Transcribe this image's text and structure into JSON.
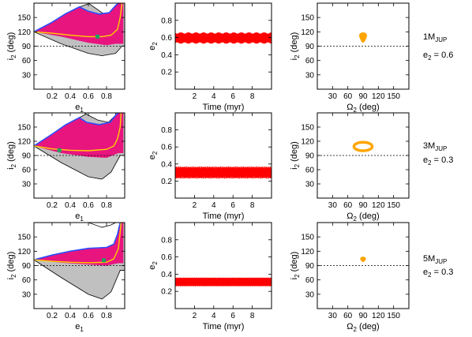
{
  "rows": [
    {
      "planet_mass": "1M",
      "planet_mass_sub": "JUP",
      "e2_label": "e",
      "e2_label_sub": "2",
      "e2_value": " = 0.6"
    },
    {
      "planet_mass": "3M",
      "planet_mass_sub": "JUP",
      "e2_label": "e",
      "e2_label_sub": "2",
      "e2_value": " = 0.3"
    },
    {
      "planet_mass": "5M",
      "planet_mass_sub": "JUP",
      "e2_label": "e",
      "e2_label_sub": "2",
      "e2_value": " = 0.3"
    }
  ],
  "chart_data": [
    {
      "panel": "row1-col1",
      "type": "area",
      "xlabel": "e",
      "xlabel_sub": "1",
      "ylabel": "i",
      "ylabel_sub": "2",
      "ylabel_suffix": " (deg)",
      "xlim": [
        0,
        1
      ],
      "ylim": [
        0,
        180
      ],
      "xticks": [
        0.2,
        0.4,
        0.6,
        0.8
      ],
      "yticks": [
        30,
        60,
        90,
        120,
        150
      ],
      "dashed_line": 90,
      "apex": 120,
      "outer_region": {
        "color": "#c0c0c0",
        "top": [
          [
            0.6,
            180
          ],
          [
            0.75,
            160
          ],
          [
            0.85,
            150
          ],
          [
            0.92,
            180
          ]
        ],
        "bottom": [
          [
            0.0,
            120
          ],
          [
            0.3,
            95
          ],
          [
            0.6,
            75
          ],
          [
            0.75,
            70
          ],
          [
            0.9,
            75
          ],
          [
            0.97,
            90
          ]
        ]
      },
      "libration_region": {
        "color": "#e8157f",
        "top": [
          [
            0.0,
            120
          ],
          [
            0.2,
            140
          ],
          [
            0.35,
            158
          ],
          [
            0.5,
            172
          ],
          [
            0.62,
            180
          ]
        ],
        "bottom": [
          [
            0.0,
            120
          ],
          [
            0.3,
            110
          ],
          [
            0.6,
            97
          ],
          [
            0.8,
            92
          ],
          [
            0.9,
            95
          ]
        ]
      },
      "blue_curve": [
        [
          0.0,
          120
        ],
        [
          0.2,
          140
        ],
        [
          0.35,
          158
        ],
        [
          0.5,
          172
        ],
        [
          0.6,
          163
        ],
        [
          0.72,
          157
        ],
        [
          0.83,
          160
        ],
        [
          0.9,
          175
        ],
        [
          0.93,
          180
        ]
      ],
      "yellow_curve": [
        [
          0.0,
          120
        ],
        [
          0.2,
          117
        ],
        [
          0.4,
          113
        ],
        [
          0.6,
          110
        ],
        [
          0.75,
          110
        ],
        [
          0.85,
          113
        ],
        [
          0.92,
          125
        ],
        [
          0.95,
          150
        ],
        [
          0.97,
          180
        ]
      ],
      "green_point": [
        0.7,
        110
      ]
    },
    {
      "panel": "row1-col2",
      "type": "line",
      "xlabel": "Time (myr)",
      "ylabel": "e",
      "ylabel_sub": "2",
      "xlim": [
        0,
        10
      ],
      "ylim": [
        0,
        1
      ],
      "xticks": [
        2,
        4,
        6,
        8
      ],
      "yticks": [
        0.2,
        0.4,
        0.6,
        0.8
      ],
      "band_min": 0.53,
      "band_max": 0.66,
      "wiggle": 0.015,
      "wiggle_freq": 8,
      "color": "#ff0000"
    },
    {
      "panel": "row1-col3",
      "type": "scatter",
      "xlabel": "Ω",
      "xlabel_sub": "2",
      "xlabel_suffix": " (deg)",
      "ylabel": "i",
      "ylabel_sub": "2",
      "ylabel_suffix": " (deg)",
      "xlim": [
        0,
        180
      ],
      "ylim": [
        0,
        180
      ],
      "xticks": [
        30,
        60,
        90,
        120,
        150
      ],
      "yticks": [
        30,
        60,
        90,
        120,
        150
      ],
      "dashed_line": 90,
      "blob": {
        "shape": "drop",
        "center": [
          90,
          112
        ],
        "rx": 7,
        "ry_top": 8,
        "ry_bottom": 14
      },
      "color": "#ffa500"
    },
    {
      "panel": "row2-col1",
      "type": "area",
      "xlabel": "e",
      "xlabel_sub": "1",
      "ylabel": "i",
      "ylabel_sub": "2",
      "ylabel_suffix": " (deg)",
      "xlim": [
        0,
        1
      ],
      "ylim": [
        0,
        180
      ],
      "xticks": [
        0.2,
        0.4,
        0.6,
        0.8
      ],
      "yticks": [
        30,
        60,
        90,
        120,
        150
      ],
      "dashed_line": 90,
      "apex": 110,
      "outer_region": {
        "color": "#c0c0c0",
        "top": [
          [
            0.55,
            180
          ],
          [
            0.7,
            165
          ],
          [
            0.82,
            160
          ],
          [
            0.9,
            175
          ]
        ],
        "bottom": [
          [
            0.0,
            110
          ],
          [
            0.3,
            75
          ],
          [
            0.6,
            45
          ],
          [
            0.75,
            40
          ],
          [
            0.85,
            55
          ],
          [
            0.95,
            90
          ]
        ]
      },
      "libration_region": {
        "color": "#e8157f",
        "top": [
          [
            0.0,
            110
          ],
          [
            0.2,
            135
          ],
          [
            0.35,
            155
          ],
          [
            0.5,
            170
          ],
          [
            0.6,
            180
          ]
        ],
        "bottom": [
          [
            0.0,
            110
          ],
          [
            0.3,
            95
          ],
          [
            0.6,
            87
          ],
          [
            0.8,
            85
          ],
          [
            0.93,
            95
          ]
        ]
      },
      "blue_curve": [
        [
          0.0,
          110
        ],
        [
          0.2,
          135
        ],
        [
          0.35,
          155
        ],
        [
          0.5,
          170
        ],
        [
          0.58,
          160
        ],
        [
          0.72,
          155
        ],
        [
          0.84,
          160
        ],
        [
          0.9,
          175
        ],
        [
          0.93,
          180
        ]
      ],
      "yellow_curve": [
        [
          0.0,
          110
        ],
        [
          0.2,
          104
        ],
        [
          0.4,
          101
        ],
        [
          0.6,
          100
        ],
        [
          0.8,
          103
        ],
        [
          0.88,
          110
        ],
        [
          0.92,
          125
        ],
        [
          0.95,
          150
        ],
        [
          0.96,
          180
        ]
      ],
      "green_point": [
        0.28,
        101
      ]
    },
    {
      "panel": "row2-col2",
      "type": "line",
      "xlabel": "Time (myr)",
      "ylabel": "e",
      "ylabel_sub": "2",
      "xlim": [
        0,
        10
      ],
      "ylim": [
        0,
        1
      ],
      "xticks": [
        2,
        4,
        6,
        8
      ],
      "yticks": [
        0.2,
        0.4,
        0.6,
        0.8
      ],
      "band_min": 0.23,
      "band_max": 0.37,
      "wiggle": 0.04,
      "wiggle_freq": 45,
      "color": "#ff0000"
    },
    {
      "panel": "row2-col3",
      "type": "scatter",
      "xlabel": "Ω",
      "xlabel_sub": "2",
      "xlabel_suffix": " (deg)",
      "ylabel": "i",
      "ylabel_sub": "2",
      "ylabel_suffix": " (deg)",
      "xlim": [
        0,
        180
      ],
      "ylim": [
        0,
        180
      ],
      "xticks": [
        30,
        60,
        90,
        120,
        150
      ],
      "yticks": [
        30,
        60,
        90,
        120,
        150
      ],
      "dashed_line": 90,
      "blob": {
        "shape": "ring",
        "center": [
          90,
          109
        ],
        "rx": 18,
        "ry": 9,
        "thickness": 3.5
      },
      "color": "#ffa500"
    },
    {
      "panel": "row3-col1",
      "type": "area",
      "xlabel": "e",
      "xlabel_sub": "1",
      "ylabel": "i",
      "ylabel_sub": "2",
      "ylabel_suffix": " (deg)",
      "xlim": [
        0,
        1
      ],
      "ylim": [
        0,
        180
      ],
      "xticks": [
        0.2,
        0.4,
        0.6,
        0.8
      ],
      "yticks": [
        30,
        60,
        90,
        120,
        150
      ],
      "dashed_line": 90,
      "apex": 102,
      "outer_region": {
        "color": "#c0c0c0",
        "top": [
          [
            0.6,
            180
          ],
          [
            0.75,
            170
          ],
          [
            0.85,
            175
          ],
          [
            0.9,
            180
          ]
        ],
        "bottom": [
          [
            0.0,
            102
          ],
          [
            0.3,
            65
          ],
          [
            0.6,
            30
          ],
          [
            0.75,
            20
          ],
          [
            0.85,
            35
          ],
          [
            0.95,
            80
          ]
        ]
      },
      "libration_region": {
        "color": "#e8157f",
        "top": [
          [
            0.0,
            102
          ],
          [
            0.2,
            112
          ],
          [
            0.4,
            120
          ],
          [
            0.6,
            126
          ],
          [
            0.8,
            128
          ],
          [
            0.88,
            135
          ],
          [
            0.92,
            155
          ],
          [
            0.95,
            180
          ]
        ],
        "bottom": [
          [
            0.0,
            102
          ],
          [
            0.3,
            96
          ],
          [
            0.6,
            92
          ],
          [
            0.8,
            90
          ],
          [
            0.93,
            95
          ]
        ]
      },
      "blue_curve": [
        [
          0.0,
          102
        ],
        [
          0.2,
          112
        ],
        [
          0.4,
          120
        ],
        [
          0.6,
          126
        ],
        [
          0.8,
          128
        ],
        [
          0.88,
          135
        ],
        [
          0.92,
          155
        ],
        [
          0.95,
          180
        ]
      ],
      "yellow_curve": [
        [
          0.0,
          102
        ],
        [
          0.2,
          99
        ],
        [
          0.4,
          97
        ],
        [
          0.6,
          96
        ],
        [
          0.8,
          97
        ],
        [
          0.88,
          104
        ],
        [
          0.93,
          125
        ],
        [
          0.95,
          160
        ],
        [
          0.96,
          180
        ]
      ],
      "green_point": [
        0.77,
        101
      ]
    },
    {
      "panel": "row3-col2",
      "type": "line",
      "xlabel": "Time (myr)",
      "ylabel": "e",
      "ylabel_sub": "2",
      "xlim": [
        0,
        10
      ],
      "ylim": [
        0,
        1
      ],
      "xticks": [
        2,
        4,
        6,
        8
      ],
      "yticks": [
        0.2,
        0.4,
        0.6,
        0.8
      ],
      "band_min": 0.26,
      "band_max": 0.36,
      "wiggle": 0.012,
      "wiggle_freq": 80,
      "color": "#ff0000"
    },
    {
      "panel": "row3-col3",
      "type": "scatter",
      "xlabel": "Ω",
      "xlabel_sub": "2",
      "xlabel_suffix": " (deg)",
      "ylabel": "i",
      "ylabel_sub": "2",
      "ylabel_suffix": " (deg)",
      "xlim": [
        0,
        180
      ],
      "ylim": [
        0,
        180
      ],
      "xticks": [
        30,
        60,
        90,
        120,
        150
      ],
      "yticks": [
        30,
        60,
        90,
        120,
        150
      ],
      "dashed_line": 90,
      "blob": {
        "shape": "drop",
        "center": [
          90,
          104
        ],
        "rx": 5,
        "ry_top": 5,
        "ry_bottom": 6
      },
      "color": "#ffa500"
    }
  ]
}
